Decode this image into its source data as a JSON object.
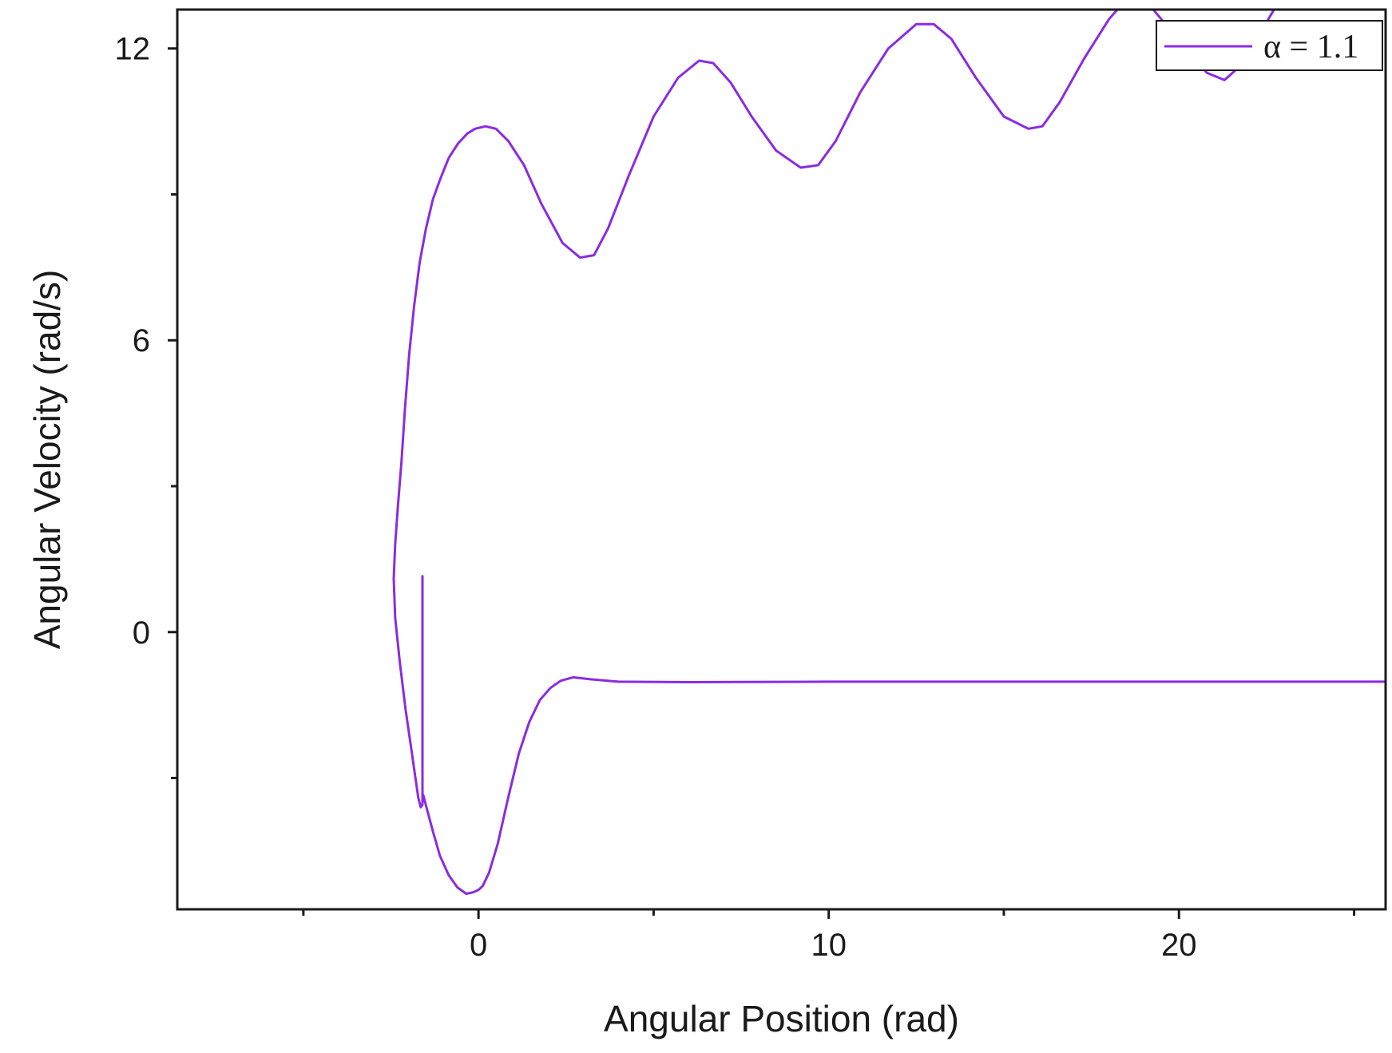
{
  "chart_data": {
    "type": "line",
    "title": "",
    "xlabel": "Angular Position (rad)",
    "ylabel": "Angular  Velocity (rad/s)",
    "xlim": [
      -8.6,
      25.9
    ],
    "ylim": [
      -5.7,
      12.8
    ],
    "xticks": [
      0,
      10,
      20
    ],
    "xticks_minor": [
      -5,
      5,
      15,
      25
    ],
    "yticks": [
      0,
      6,
      12
    ],
    "yticks_minor": [
      -3,
      3,
      9
    ],
    "grid": false,
    "legend_position": "top-right",
    "series": [
      {
        "name": "α = 1.1",
        "color": "#8a2be2",
        "x": [
          -1.6,
          -1.6,
          -1.65,
          -1.72,
          -1.8,
          -1.92,
          -2.08,
          -2.25,
          -2.38,
          -2.42,
          -2.38,
          -2.3,
          -2.2,
          -2.1,
          -1.98,
          -1.84,
          -1.68,
          -1.5,
          -1.3,
          -1.1,
          -0.85,
          -0.58,
          -0.32,
          -0.1,
          0.2,
          0.5,
          0.85,
          1.3,
          1.8,
          2.4,
          2.9,
          3.3,
          3.7,
          4.3,
          5.0,
          5.7,
          6.3,
          6.7,
          7.2,
          7.8,
          8.5,
          9.2,
          9.7,
          10.2,
          10.9,
          11.7,
          12.5,
          13.0,
          13.5,
          14.2,
          15.0,
          15.7,
          16.1,
          16.6,
          17.3,
          18.0,
          18.3,
          18.8,
          19.5,
          20.3,
          20.8,
          21.3,
          22.0,
          22.3,
          22.8,
          23.5
        ],
        "y": [
          1.15,
          -3.55,
          -3.6,
          -3.4,
          -3.0,
          -2.4,
          -1.6,
          -0.6,
          0.3,
          1.1,
          1.8,
          2.6,
          3.5,
          4.6,
          5.7,
          6.7,
          7.6,
          8.3,
          8.9,
          9.3,
          9.75,
          10.05,
          10.25,
          10.35,
          10.4,
          10.35,
          10.1,
          9.6,
          8.8,
          8.0,
          7.7,
          7.75,
          8.3,
          9.4,
          10.6,
          11.4,
          11.75,
          11.7,
          11.3,
          10.6,
          9.9,
          9.55,
          9.6,
          10.1,
          11.1,
          12.0,
          12.5,
          12.5,
          12.2,
          11.4,
          10.6,
          10.35,
          10.4,
          10.9,
          11.8,
          12.6,
          12.85,
          13.2,
          12.6,
          11.9,
          11.5,
          11.35,
          11.8,
          12.3,
          12.9,
          13.3
        ]
      },
      {
        "name": "",
        "color": "#8a2be2",
        "x": [
          -1.58,
          -1.45,
          -1.3,
          -1.1,
          -0.85,
          -0.6,
          -0.35,
          -0.15,
          0.0,
          0.12,
          0.3,
          0.55,
          0.85,
          1.15,
          1.45,
          1.75,
          2.05,
          2.35,
          2.7,
          3.2,
          4.0,
          6.0,
          10.0,
          15.0,
          20.0,
          25.9
        ],
        "y": [
          -3.35,
          -3.7,
          -4.1,
          -4.6,
          -5.0,
          -5.25,
          -5.38,
          -5.35,
          -5.3,
          -5.22,
          -4.95,
          -4.35,
          -3.4,
          -2.5,
          -1.85,
          -1.4,
          -1.15,
          -1.0,
          -0.93,
          -0.97,
          -1.02,
          -1.03,
          -1.02,
          -1.02,
          -1.02,
          -1.02
        ]
      }
    ]
  }
}
